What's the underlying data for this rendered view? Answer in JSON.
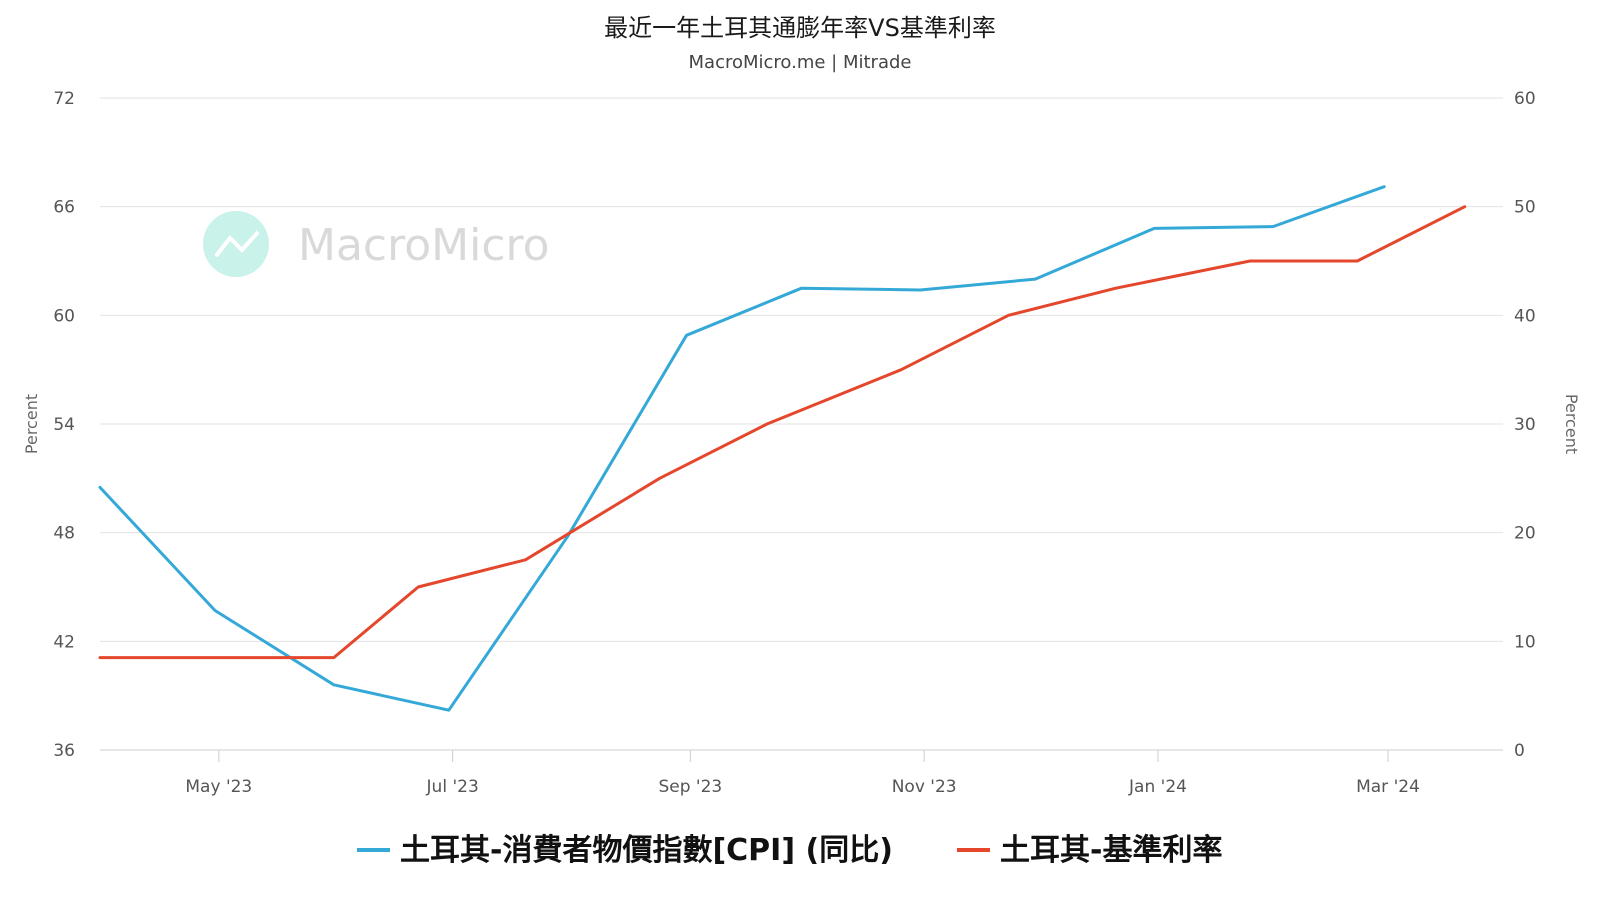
{
  "chart_data": {
    "type": "line",
    "title": "最近一年土耳其通膨年率VS基準利率",
    "subtitle": "MacroMicro.me | Mitrade",
    "watermark": "MacroMicro",
    "x_ticks": [
      {
        "date": "2023-05-01",
        "label": "May '23"
      },
      {
        "date": "2023-07-01",
        "label": "Jul '23"
      },
      {
        "date": "2023-09-01",
        "label": "Sep '23"
      },
      {
        "date": "2023-11-01",
        "label": "Nov '23"
      },
      {
        "date": "2024-01-01",
        "label": "Jan '24"
      },
      {
        "date": "2024-03-01",
        "label": "Mar '24"
      }
    ],
    "xlim": [
      "2023-03-31",
      "2024-03-31"
    ],
    "y_left": {
      "label": "Percent",
      "ticks": [
        36,
        42,
        48,
        54,
        60,
        66,
        72
      ],
      "lim": [
        36,
        72
      ]
    },
    "y_right": {
      "label": "Percent",
      "ticks": [
        0,
        10,
        20,
        30,
        40,
        50,
        60
      ],
      "lim": [
        0,
        60
      ]
    },
    "grid": true,
    "legend_position": "bottom",
    "series": [
      {
        "name": "土耳其-消費者物價指數[CPI] (同比)",
        "color": "#34a9d8",
        "axis": "left",
        "points": [
          [
            "2023-03-31",
            50.5
          ],
          [
            "2023-04-30",
            43.7
          ],
          [
            "2023-05-31",
            39.6
          ],
          [
            "2023-06-30",
            38.2
          ],
          [
            "2023-07-31",
            47.8
          ],
          [
            "2023-08-31",
            58.9
          ],
          [
            "2023-09-30",
            61.5
          ],
          [
            "2023-10-31",
            61.4
          ],
          [
            "2023-11-30",
            62.0
          ],
          [
            "2023-12-31",
            64.8
          ],
          [
            "2024-01-31",
            64.9
          ],
          [
            "2024-02-29",
            67.1
          ]
        ]
      },
      {
        "name": "土耳其-基準利率",
        "color": "#e4472b",
        "axis": "right",
        "points": [
          [
            "2023-03-31",
            8.5
          ],
          [
            "2023-04-30",
            8.5
          ],
          [
            "2023-05-31",
            8.5
          ],
          [
            "2023-06-22",
            15.0
          ],
          [
            "2023-07-20",
            17.5
          ],
          [
            "2023-08-24",
            25.0
          ],
          [
            "2023-09-21",
            30.0
          ],
          [
            "2023-10-26",
            35.0
          ],
          [
            "2023-11-23",
            40.0
          ],
          [
            "2023-12-21",
            42.5
          ],
          [
            "2024-01-25",
            45.0
          ],
          [
            "2024-02-22",
            45.0
          ],
          [
            "2024-03-21",
            50.0
          ]
        ]
      }
    ]
  }
}
